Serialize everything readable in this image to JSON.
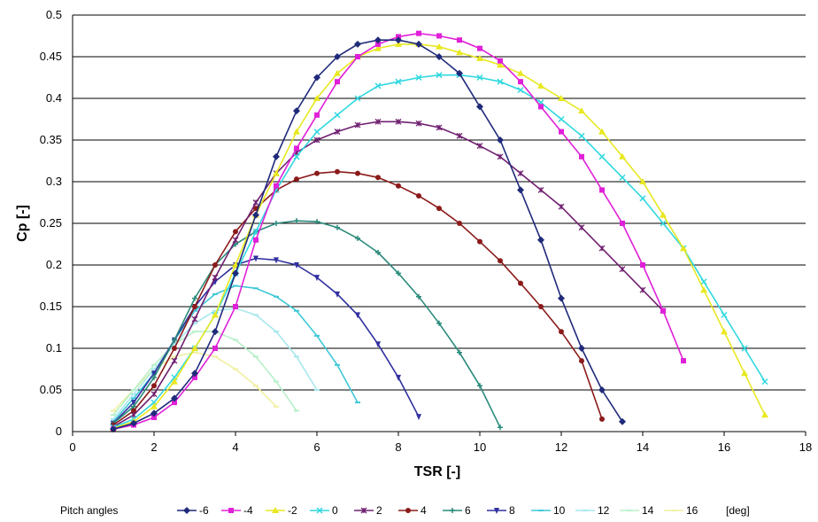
{
  "chart_data": {
    "type": "line",
    "title": "",
    "xlabel": "TSR [-]",
    "ylabel": "Cp [-]",
    "xlim": [
      0,
      18
    ],
    "ylim": [
      0,
      0.5
    ],
    "x_ticks": [
      "0",
      "2",
      "4",
      "6",
      "8",
      "10",
      "12",
      "14",
      "16",
      "18"
    ],
    "y_ticks": [
      "0",
      "0.05",
      "0.1",
      "0.15",
      "0.2",
      "0.25",
      "0.3",
      "0.35",
      "0.4",
      "0.45",
      "0.5"
    ],
    "grid": "horizontal",
    "legend_position": "bottom",
    "legend_title": "Pitch angles",
    "legend_unit": "[deg]",
    "series": [
      {
        "name": "-6",
        "color": "#1f2a7a",
        "marker": "diamond",
        "x": [
          1.0,
          1.5,
          2.0,
          2.5,
          3.0,
          3.5,
          4.0,
          4.5,
          5.0,
          5.5,
          6.0,
          6.5,
          7.0,
          7.5,
          8.0,
          8.5,
          9.0,
          9.5,
          10.0,
          10.5,
          11.0,
          11.5,
          12.0,
          12.5,
          13.0,
          13.5
        ],
        "y": [
          0.003,
          0.01,
          0.022,
          0.04,
          0.07,
          0.12,
          0.19,
          0.26,
          0.33,
          0.385,
          0.425,
          0.45,
          0.465,
          0.47,
          0.47,
          0.465,
          0.45,
          0.43,
          0.39,
          0.35,
          0.29,
          0.23,
          0.16,
          0.1,
          0.05,
          0.012
        ]
      },
      {
        "name": "-4",
        "color": "#e020d8",
        "marker": "square",
        "x": [
          1.0,
          1.5,
          2.0,
          2.5,
          3.0,
          3.5,
          4.0,
          4.5,
          5.0,
          5.5,
          6.0,
          6.5,
          7.0,
          7.5,
          8.0,
          8.5,
          9.0,
          9.5,
          10.0,
          10.5,
          11.0,
          11.5,
          12.0,
          12.5,
          13.0,
          13.5,
          14.0,
          14.5,
          15.0
        ],
        "y": [
          0.003,
          0.008,
          0.017,
          0.035,
          0.065,
          0.1,
          0.15,
          0.23,
          0.295,
          0.34,
          0.38,
          0.42,
          0.45,
          0.465,
          0.474,
          0.478,
          0.475,
          0.47,
          0.46,
          0.445,
          0.42,
          0.39,
          0.36,
          0.33,
          0.29,
          0.25,
          0.2,
          0.145,
          0.085
        ]
      },
      {
        "name": "-2",
        "color": "#e8e820",
        "marker": "triangle",
        "x": [
          1.0,
          1.5,
          2.0,
          2.5,
          3.0,
          3.5,
          4.0,
          4.5,
          5.0,
          5.5,
          6.0,
          6.5,
          7.0,
          7.5,
          8.0,
          8.5,
          9.0,
          9.5,
          10.0,
          10.5,
          11.0,
          11.5,
          12.0,
          12.5,
          13.0,
          13.5,
          14.0,
          14.5,
          15.0,
          15.5,
          16.0,
          16.5,
          17.0
        ],
        "y": [
          0.004,
          0.012,
          0.03,
          0.06,
          0.1,
          0.14,
          0.2,
          0.26,
          0.31,
          0.36,
          0.4,
          0.43,
          0.45,
          0.46,
          0.465,
          0.465,
          0.462,
          0.455,
          0.448,
          0.44,
          0.43,
          0.415,
          0.4,
          0.385,
          0.36,
          0.33,
          0.3,
          0.26,
          0.22,
          0.17,
          0.12,
          0.07,
          0.02
        ]
      },
      {
        "name": "0",
        "color": "#30d8e0",
        "marker": "x",
        "x": [
          1.0,
          1.5,
          2.0,
          2.5,
          3.0,
          3.5,
          4.0,
          4.5,
          5.0,
          5.5,
          6.0,
          6.5,
          7.0,
          7.5,
          8.0,
          8.5,
          9.0,
          9.5,
          10.0,
          10.5,
          11.0,
          11.5,
          12.0,
          12.5,
          13.0,
          13.5,
          14.0,
          14.5,
          15.0,
          15.5,
          16.0,
          16.5,
          17.0
        ],
        "y": [
          0.005,
          0.015,
          0.035,
          0.065,
          0.1,
          0.14,
          0.19,
          0.24,
          0.29,
          0.33,
          0.36,
          0.38,
          0.4,
          0.415,
          0.42,
          0.425,
          0.428,
          0.428,
          0.425,
          0.42,
          0.41,
          0.395,
          0.375,
          0.355,
          0.33,
          0.305,
          0.28,
          0.25,
          0.22,
          0.18,
          0.14,
          0.1,
          0.06
        ]
      },
      {
        "name": "2",
        "color": "#702070",
        "marker": "star",
        "x": [
          1.0,
          1.5,
          2.0,
          2.5,
          3.0,
          3.5,
          4.0,
          4.5,
          5.0,
          5.5,
          6.0,
          6.5,
          7.0,
          7.5,
          8.0,
          8.5,
          9.0,
          9.5,
          10.0,
          10.5,
          11.0,
          11.5,
          12.0,
          12.5,
          13.0,
          13.5,
          14.0,
          14.5
        ],
        "y": [
          0.006,
          0.02,
          0.045,
          0.085,
          0.135,
          0.185,
          0.23,
          0.275,
          0.31,
          0.335,
          0.35,
          0.36,
          0.368,
          0.372,
          0.372,
          0.37,
          0.365,
          0.355,
          0.343,
          0.33,
          0.31,
          0.29,
          0.27,
          0.245,
          0.22,
          0.195,
          0.17,
          0.145
        ]
      },
      {
        "name": "4",
        "color": "#8b1a1a",
        "marker": "circle",
        "x": [
          1.0,
          1.5,
          2.0,
          2.5,
          3.0,
          3.5,
          4.0,
          4.5,
          5.0,
          5.5,
          6.0,
          6.5,
          7.0,
          7.5,
          8.0,
          8.5,
          9.0,
          9.5,
          10.0,
          10.5,
          11.0,
          11.5,
          12.0,
          12.5,
          13.0
        ],
        "y": [
          0.008,
          0.025,
          0.055,
          0.1,
          0.15,
          0.2,
          0.24,
          0.268,
          0.29,
          0.303,
          0.31,
          0.312,
          0.31,
          0.305,
          0.295,
          0.283,
          0.268,
          0.25,
          0.228,
          0.205,
          0.178,
          0.15,
          0.12,
          0.085,
          0.015
        ]
      },
      {
        "name": "6",
        "color": "#2a8a7a",
        "marker": "plus",
        "x": [
          1.0,
          1.5,
          2.0,
          2.5,
          3.0,
          3.5,
          4.0,
          4.5,
          5.0,
          5.5,
          6.0,
          6.5,
          7.0,
          7.5,
          8.0,
          8.5,
          9.0,
          9.5,
          10.0,
          10.5
        ],
        "y": [
          0.01,
          0.03,
          0.065,
          0.11,
          0.16,
          0.2,
          0.225,
          0.24,
          0.25,
          0.253,
          0.252,
          0.245,
          0.232,
          0.215,
          0.19,
          0.162,
          0.13,
          0.095,
          0.055,
          0.005
        ]
      },
      {
        "name": "8",
        "color": "#3030a0",
        "marker": "tri-down",
        "x": [
          1.0,
          1.5,
          2.0,
          2.5,
          3.0,
          3.5,
          4.0,
          4.5,
          5.0,
          5.5,
          6.0,
          6.5,
          7.0,
          7.5,
          8.0,
          8.5
        ],
        "y": [
          0.01,
          0.035,
          0.07,
          0.11,
          0.15,
          0.18,
          0.2,
          0.208,
          0.206,
          0.2,
          0.185,
          0.165,
          0.14,
          0.105,
          0.065,
          0.018
        ]
      },
      {
        "name": "10",
        "color": "#40c8d8",
        "marker": "dash",
        "x": [
          1.0,
          1.5,
          2.0,
          2.5,
          3.0,
          3.5,
          4.0,
          4.5,
          5.0,
          5.5,
          6.0,
          6.5,
          7.0
        ],
        "y": [
          0.012,
          0.04,
          0.07,
          0.11,
          0.145,
          0.165,
          0.175,
          0.172,
          0.162,
          0.145,
          0.115,
          0.08,
          0.035
        ]
      },
      {
        "name": "12",
        "color": "#a8e8ee",
        "marker": "dash",
        "x": [
          1.0,
          1.5,
          2.0,
          2.5,
          3.0,
          3.5,
          4.0,
          4.5,
          5.0,
          5.5,
          6.0
        ],
        "y": [
          0.015,
          0.045,
          0.075,
          0.105,
          0.13,
          0.145,
          0.148,
          0.14,
          0.12,
          0.09,
          0.05
        ]
      },
      {
        "name": "14",
        "color": "#b8f0c8",
        "marker": "dash",
        "x": [
          1.0,
          1.5,
          2.0,
          2.5,
          3.0,
          3.5,
          4.0,
          4.5,
          5.0,
          5.5
        ],
        "y": [
          0.02,
          0.05,
          0.08,
          0.105,
          0.12,
          0.12,
          0.11,
          0.09,
          0.06,
          0.025
        ]
      },
      {
        "name": "16",
        "color": "#f0f0a0",
        "marker": "dash",
        "x": [
          1.0,
          1.5,
          2.0,
          2.5,
          3.0,
          3.5,
          4.0,
          4.5,
          5.0
        ],
        "y": [
          0.025,
          0.05,
          0.075,
          0.09,
          0.095,
          0.09,
          0.075,
          0.055,
          0.03
        ]
      }
    ]
  }
}
